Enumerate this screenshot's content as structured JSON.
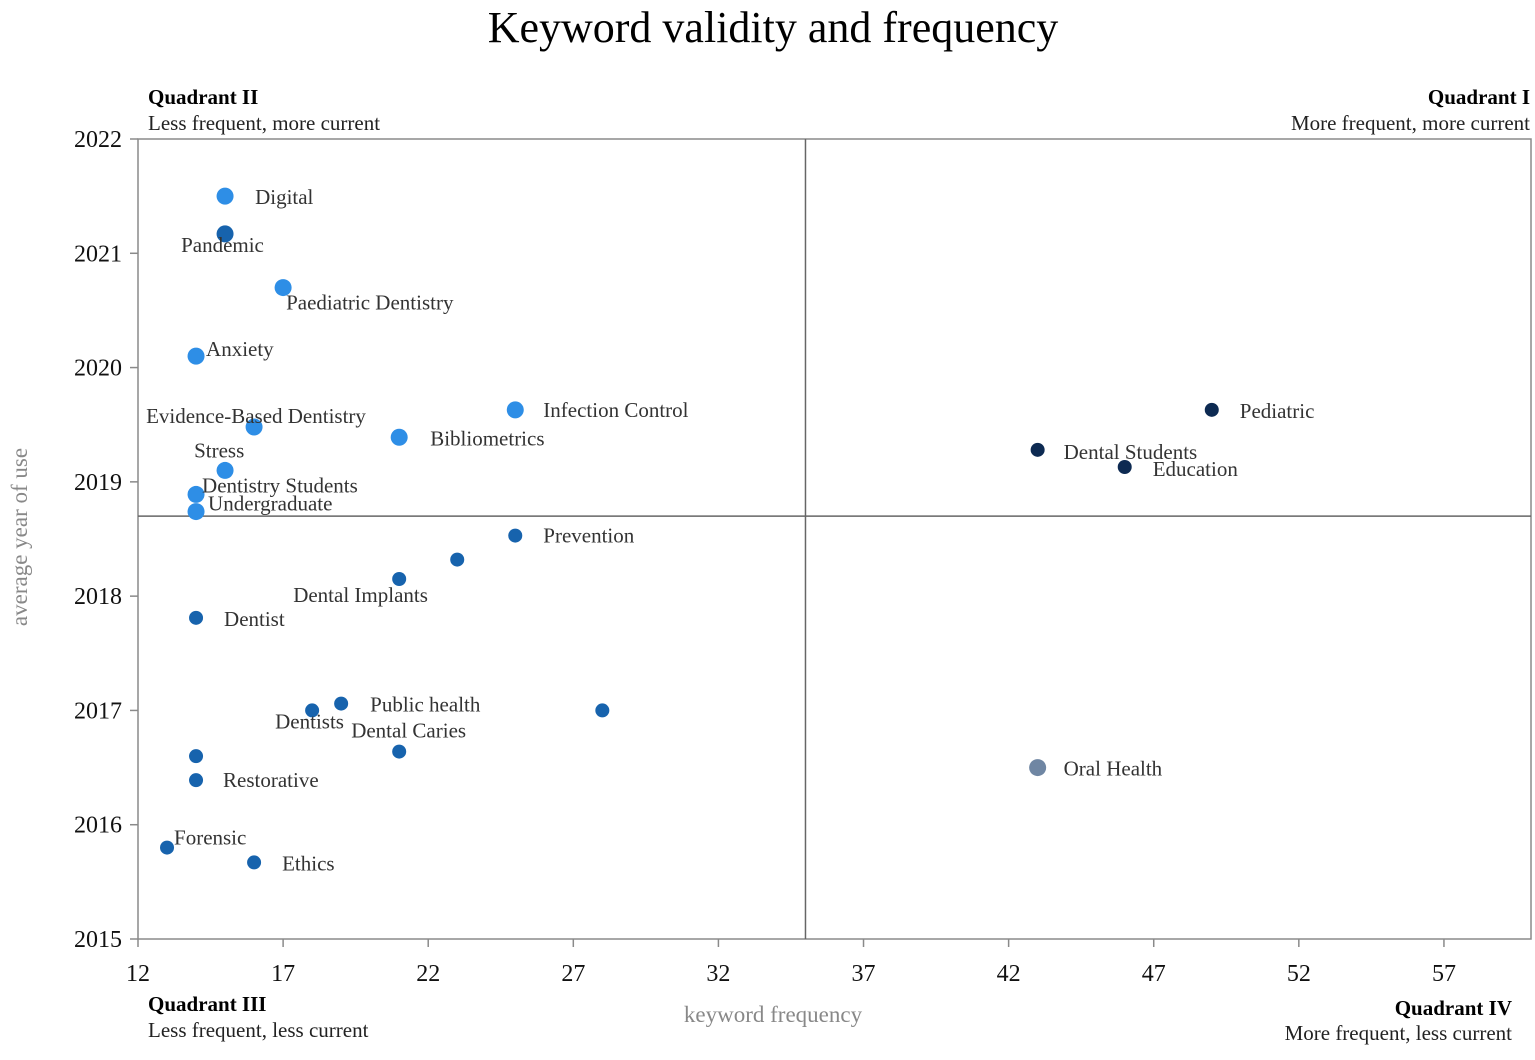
{
  "chart_data": {
    "type": "scatter",
    "title": "Keyword validity and frequency",
    "xlabel": "keyword frequency",
    "ylabel": "average year of use",
    "xlim": [
      12,
      60
    ],
    "ylim": [
      2015,
      2022
    ],
    "xticks": [
      "12",
      "17",
      "22",
      "27",
      "32",
      "37",
      "42",
      "47",
      "52",
      "57"
    ],
    "yticks": [
      "2015",
      "2016",
      "2017",
      "2018",
      "2019",
      "2020",
      "2021",
      "2022"
    ],
    "divider": {
      "x": 35,
      "y": 2018.7
    },
    "grid": false,
    "quadrants": {
      "q1": {
        "title": "Quadrant I",
        "subtitle": "More frequent, more current"
      },
      "q2": {
        "title": "Quadrant II",
        "subtitle": "Less frequent, more current"
      },
      "q3": {
        "title": "Quadrant III",
        "subtitle": "Less frequent, less current"
      },
      "q4": {
        "title": "Quadrant IV",
        "subtitle": "More frequent, less current"
      }
    },
    "colors": {
      "light": "#2e8ee6",
      "mid": "#1763ad",
      "dark": "#0d2a52",
      "gray": "#6f86a3"
    },
    "points": [
      {
        "label": "Digital",
        "x": 15,
        "y": 2021.5,
        "color": "light",
        "size": "large"
      },
      {
        "label": "Pandemic",
        "x": 15,
        "y": 2021.17,
        "color": "mid",
        "size": "large"
      },
      {
        "label": "Paediatric Dentistry",
        "x": 17,
        "y": 2020.7,
        "color": "light",
        "size": "large"
      },
      {
        "label": "Anxiety",
        "x": 14,
        "y": 2020.1,
        "color": "light",
        "size": "large"
      },
      {
        "label": "Infection Control",
        "x": 25,
        "y": 2019.63,
        "color": "light",
        "size": "large"
      },
      {
        "label": "Evidence-Based Dentistry",
        "x": 16,
        "y": 2019.48,
        "color": "light",
        "size": "large"
      },
      {
        "label": "Bibliometrics",
        "x": 21,
        "y": 2019.39,
        "color": "light",
        "size": "large"
      },
      {
        "label": "Stress",
        "x": 15,
        "y": 2019.1,
        "color": "light",
        "size": "large"
      },
      {
        "label": "Dentistry Students",
        "x": 14,
        "y": 2018.89,
        "color": "light",
        "size": "large"
      },
      {
        "label": "Undergraduate",
        "x": 14,
        "y": 2018.74,
        "color": "light",
        "size": "large"
      },
      {
        "label": "Prevention",
        "x": 25,
        "y": 2018.53,
        "color": "mid",
        "size": "small"
      },
      {
        "label": "",
        "x": 23,
        "y": 2018.32,
        "color": "mid",
        "size": "small"
      },
      {
        "label": "Dental Implants",
        "x": 21,
        "y": 2018.15,
        "color": "mid",
        "size": "small"
      },
      {
        "label": "Dentist",
        "x": 14,
        "y": 2017.81,
        "color": "mid",
        "size": "small"
      },
      {
        "label": "Public health",
        "x": 19,
        "y": 2017.06,
        "color": "mid",
        "size": "small"
      },
      {
        "label": "Dentists",
        "x": 18,
        "y": 2017.0,
        "color": "mid",
        "size": "small"
      },
      {
        "label": "",
        "x": 28,
        "y": 2017.0,
        "color": "mid",
        "size": "small"
      },
      {
        "label": "Dental Caries",
        "x": 21,
        "y": 2016.64,
        "color": "mid",
        "size": "small"
      },
      {
        "label": "",
        "x": 14,
        "y": 2016.6,
        "color": "mid",
        "size": "small"
      },
      {
        "label": "Restorative",
        "x": 14,
        "y": 2016.39,
        "color": "mid",
        "size": "small"
      },
      {
        "label": "Forensic",
        "x": 13,
        "y": 2015.8,
        "color": "mid",
        "size": "small"
      },
      {
        "label": "Ethics",
        "x": 16,
        "y": 2015.67,
        "color": "mid",
        "size": "small"
      },
      {
        "label": "Pediatric",
        "x": 49,
        "y": 2019.63,
        "color": "dark",
        "size": "small"
      },
      {
        "label": "Dental Students",
        "x": 43,
        "y": 2019.28,
        "color": "dark",
        "size": "small"
      },
      {
        "label": "Education",
        "x": 46,
        "y": 2019.13,
        "color": "dark",
        "size": "small"
      },
      {
        "label": "Oral Health",
        "x": 43,
        "y": 2016.5,
        "color": "gray",
        "size": "large"
      }
    ]
  }
}
